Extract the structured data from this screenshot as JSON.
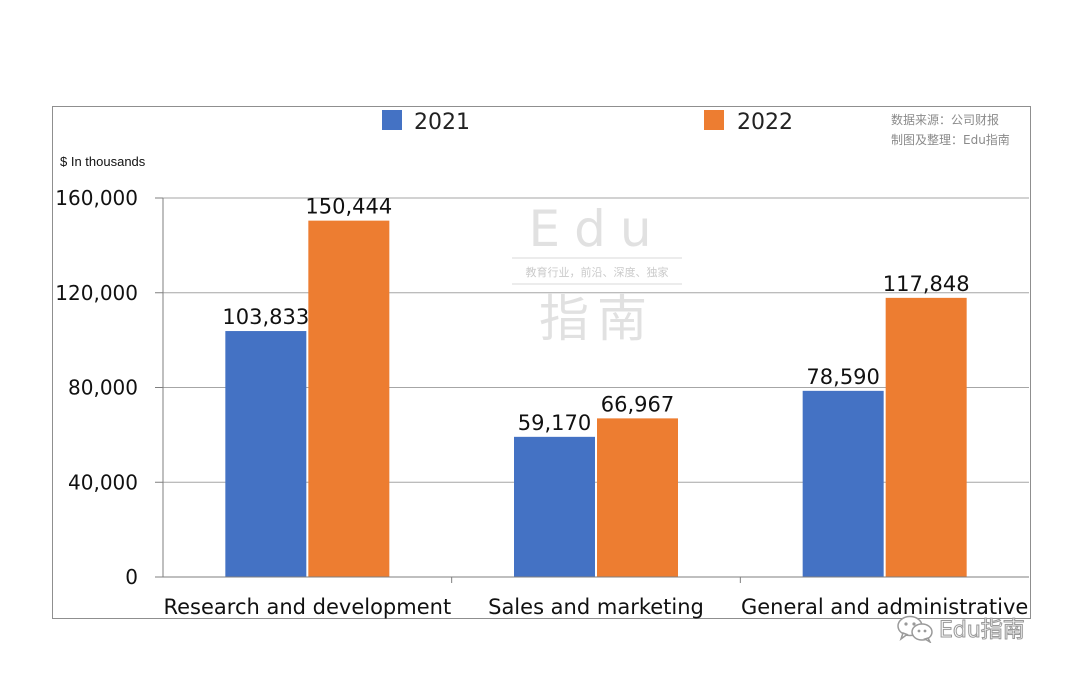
{
  "chart_data": {
    "type": "bar",
    "categories": [
      "Research and development",
      "Sales and marketing",
      "General and administrative"
    ],
    "series": [
      {
        "name": "2021",
        "color": "#4472c4",
        "values": [
          103833,
          59170,
          78590
        ],
        "labels": [
          "103,833",
          "59,170",
          "78,590"
        ]
      },
      {
        "name": "2022",
        "color": "#ed7d31",
        "values": [
          150444,
          66967,
          117848
        ],
        "labels": [
          "150,444",
          "66,967",
          "117,848"
        ]
      }
    ],
    "ylim": [
      0,
      160000
    ],
    "yticks": [
      0,
      40000,
      80000,
      120000,
      160000
    ],
    "ytick_labels": [
      "0",
      "40,000",
      "80,000",
      "120,000",
      "160,000"
    ],
    "unit_label": "$ In thousands",
    "grid": true,
    "legend_position": "top"
  },
  "source": {
    "line1": "数据来源：公司财报",
    "line2": "制图及整理：Edu指南"
  },
  "watermark": {
    "latin": "Edu",
    "tagline": "教育行业，前沿、深度、独家",
    "cjk": "指南",
    "badge_text": "Edu指南",
    "badge_icon": "wechat-icon"
  }
}
